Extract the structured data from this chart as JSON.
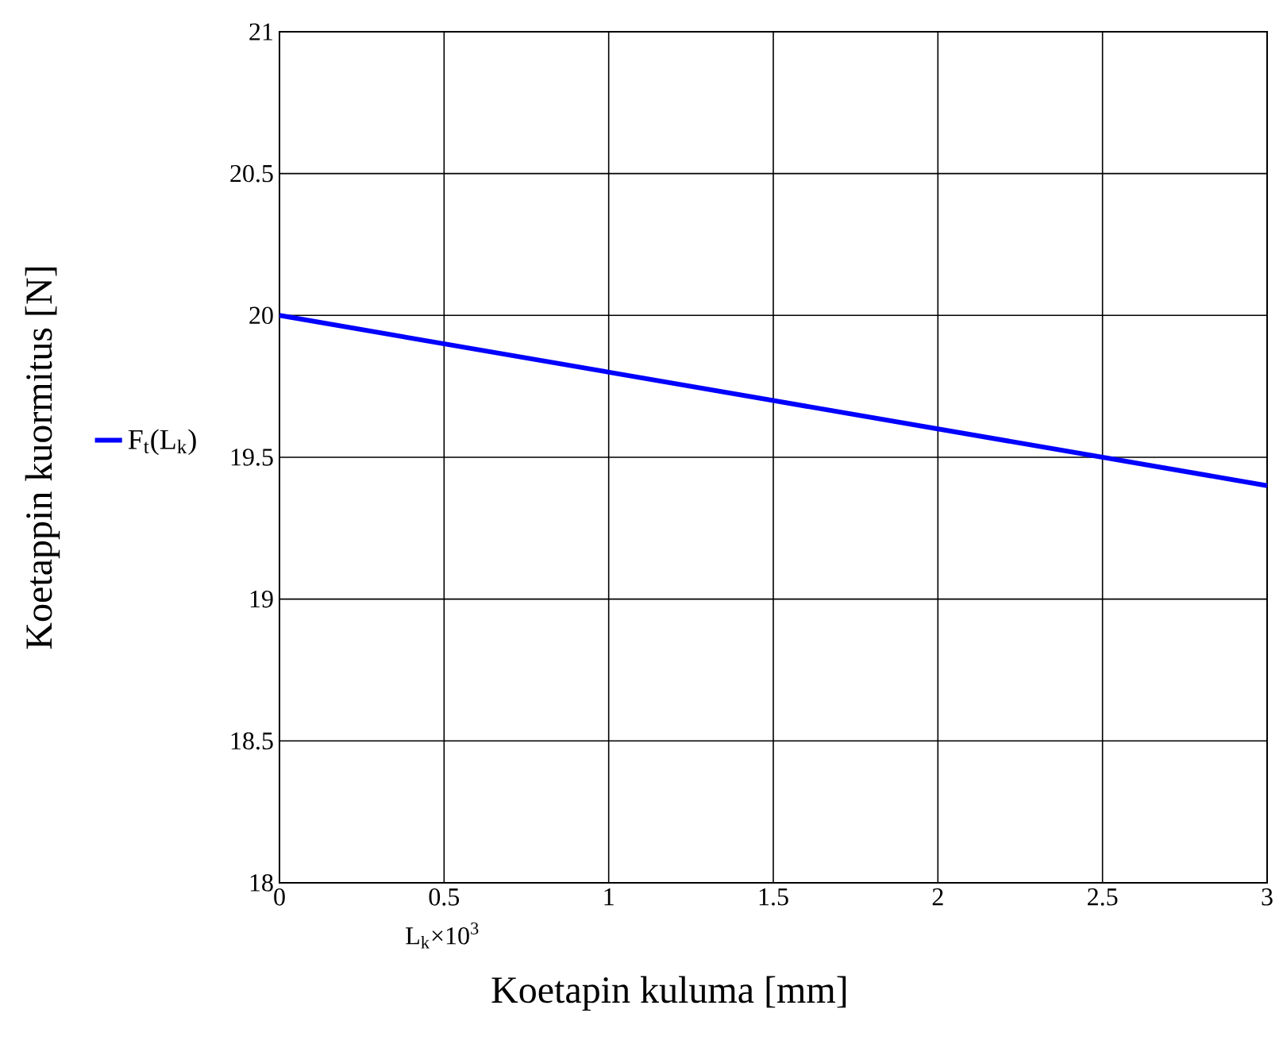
{
  "chart_data": {
    "type": "line",
    "xlabel": "Koetapin kuluma [mm]",
    "ylabel": "Koetappin kuormitus [N]",
    "annotations": [
      "L$_{k}$×10$^{3}$"
    ],
    "x": [
      0,
      3
    ],
    "series": [
      {
        "name": "F$_{t}$(L$_{k}$)",
        "color": "#0000ff",
        "values": [
          20,
          19.4
        ]
      }
    ],
    "xlim": [
      0,
      3
    ],
    "ylim": [
      18,
      21
    ],
    "xticks": [
      0,
      0.5,
      1,
      1.5,
      2,
      2.5,
      3
    ],
    "yticks": [
      18,
      18.5,
      19,
      19.5,
      20,
      20.5,
      21
    ],
    "grid": true,
    "legend": "left",
    "marker": "none",
    "line_style": "solid"
  }
}
